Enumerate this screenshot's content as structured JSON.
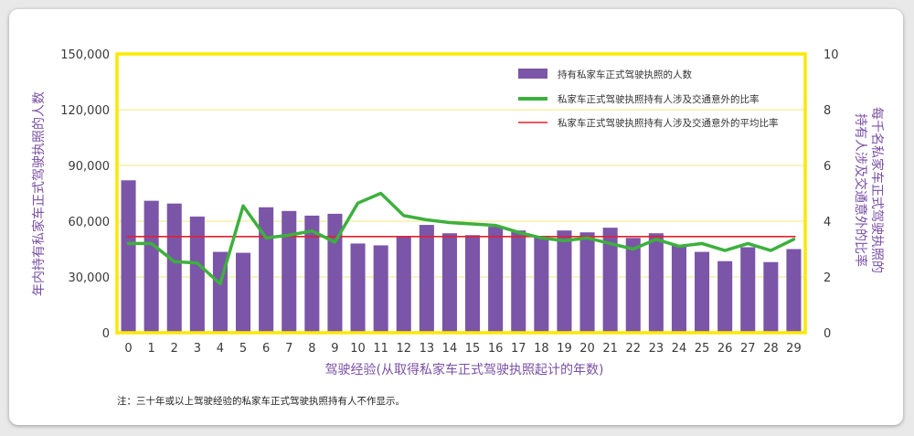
{
  "colors": {
    "bar": "#7b55a8",
    "ratio_line": "#3db03d",
    "avg_line": "#e0222b",
    "frame": "#fbe800",
    "grid": "#f0ea80",
    "title": "#7a4fa5"
  },
  "chart_data": {
    "type": "bar",
    "title": "",
    "xlabel": "驾驶经验(从取得私家车正式驾驶执照起计的年数)",
    "ylabel": "年内持有私家车正式驾驶执照的人数",
    "y2label_line1": "每千名私家车正式驾驶执照的",
    "y2label_line2": "持有人涉及交通意外的比率",
    "categories": [
      "0",
      "1",
      "2",
      "3",
      "4",
      "5",
      "6",
      "7",
      "8",
      "9",
      "10",
      "11",
      "12",
      "13",
      "14",
      "15",
      "16",
      "17",
      "18",
      "19",
      "20",
      "21",
      "22",
      "23",
      "24",
      "25",
      "26",
      "27",
      "28",
      "29"
    ],
    "ylim": [
      0,
      150000
    ],
    "y_ticks": [
      "0",
      "30,000",
      "60,000",
      "90,000",
      "120,000",
      "150,000"
    ],
    "y2lim": [
      0,
      10
    ],
    "y2_ticks": [
      "0",
      "2",
      "4",
      "6",
      "8",
      "10"
    ],
    "grid": true,
    "legend_position": "top-right",
    "series": [
      {
        "name": "持有私家车正式驾驶执照的人数",
        "type": "bar",
        "axis": "left",
        "values": [
          82000,
          71000,
          69500,
          62500,
          43500,
          43000,
          67500,
          65500,
          63000,
          64000,
          48000,
          47000,
          52000,
          58000,
          53500,
          52500,
          57000,
          55000,
          52000,
          55000,
          54000,
          56500,
          51000,
          53500,
          47000,
          43500,
          38500,
          46000,
          38000,
          45000
        ]
      },
      {
        "name": "私家车正式驾驶执照持有人涉及交通意外的比率",
        "type": "line",
        "axis": "right",
        "values": [
          3.2,
          3.2,
          2.55,
          2.5,
          1.75,
          4.55,
          3.4,
          3.5,
          3.65,
          3.25,
          4.65,
          5.0,
          4.2,
          4.05,
          3.95,
          3.9,
          3.85,
          3.6,
          3.4,
          3.3,
          3.4,
          3.2,
          3.0,
          3.35,
          3.1,
          3.2,
          2.95,
          3.2,
          2.95,
          3.35
        ]
      },
      {
        "name": "私家车正式驾驶执照持有人涉及交通意外的平均比率",
        "type": "hline",
        "axis": "right",
        "value": 3.45
      }
    ]
  },
  "note": "注：三十年或以上驾驶经验的私家车正式驾驶执照持有人不作显示。"
}
